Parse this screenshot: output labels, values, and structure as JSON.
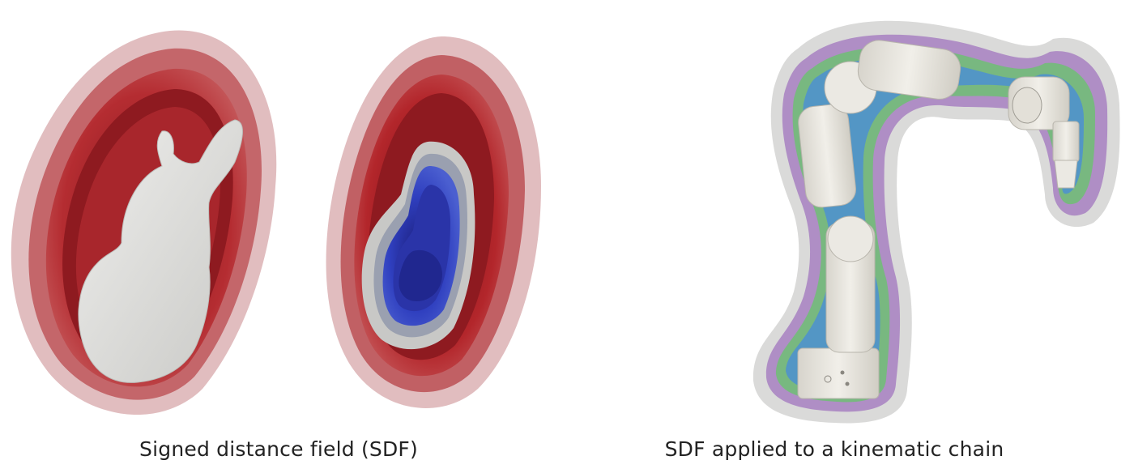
{
  "figure": {
    "left_caption": "Signed distance field (SDF)",
    "right_caption": "SDF applied to a kinematic chain"
  },
  "colors": {
    "sdf_positive": "#b3262b",
    "sdf_negative": "#2a34a8",
    "surface": "#dcdcd9",
    "robot": "#e6e3dc"
  },
  "icons": {
    "bunny_sdf": "bunny-surface-with-outer-isolayers",
    "bunny_cut": "bunny-section-with-inner-isolayers",
    "robot_sdf": "robot-arm-with-isolayers"
  }
}
